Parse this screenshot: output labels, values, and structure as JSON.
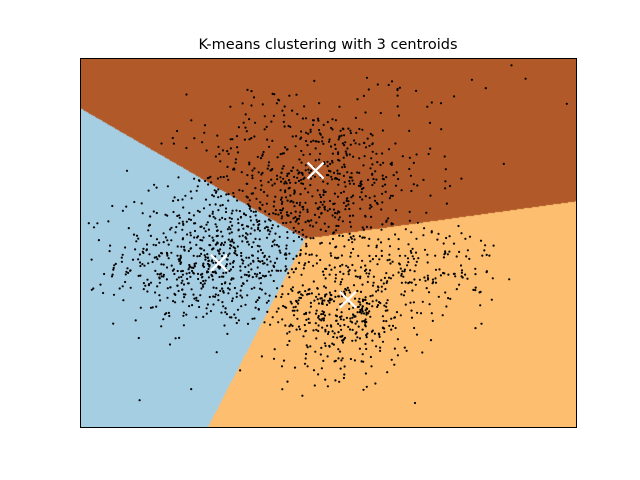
{
  "chart_data": {
    "type": "scatter",
    "title": "K-means clustering with 3 centroids",
    "xlabel": "",
    "ylabel": "",
    "xlim": [
      -1,
      1
    ],
    "ylim": [
      -1,
      1
    ],
    "show_ticks": false,
    "grid": false,
    "region_colors": [
      "#a6cee3",
      "#b15928",
      "#fdbf6f"
    ],
    "point_color": "#000000",
    "centroid_color": "#ffffff",
    "centroids": [
      {
        "x": -0.44,
        "y": -0.11
      },
      {
        "x": -0.05,
        "y": 0.39
      },
      {
        "x": 0.08,
        "y": -0.31
      }
    ],
    "clusters": [
      {
        "n": 700,
        "x": -0.45,
        "y": -0.1,
        "sx": 0.2,
        "sy": 0.18
      },
      {
        "n": 600,
        "x": -0.06,
        "y": 0.34,
        "sx": 0.24,
        "sy": 0.2
      },
      {
        "n": 430,
        "x": 0.06,
        "y": -0.38,
        "sx": 0.14,
        "sy": 0.17
      },
      {
        "n": 160,
        "x": 0.4,
        "y": -0.12,
        "sx": 0.15,
        "sy": 0.13
      },
      {
        "n": 60,
        "x": 0.1,
        "y": 0.7,
        "sx": 0.35,
        "sy": 0.18
      }
    ]
  }
}
